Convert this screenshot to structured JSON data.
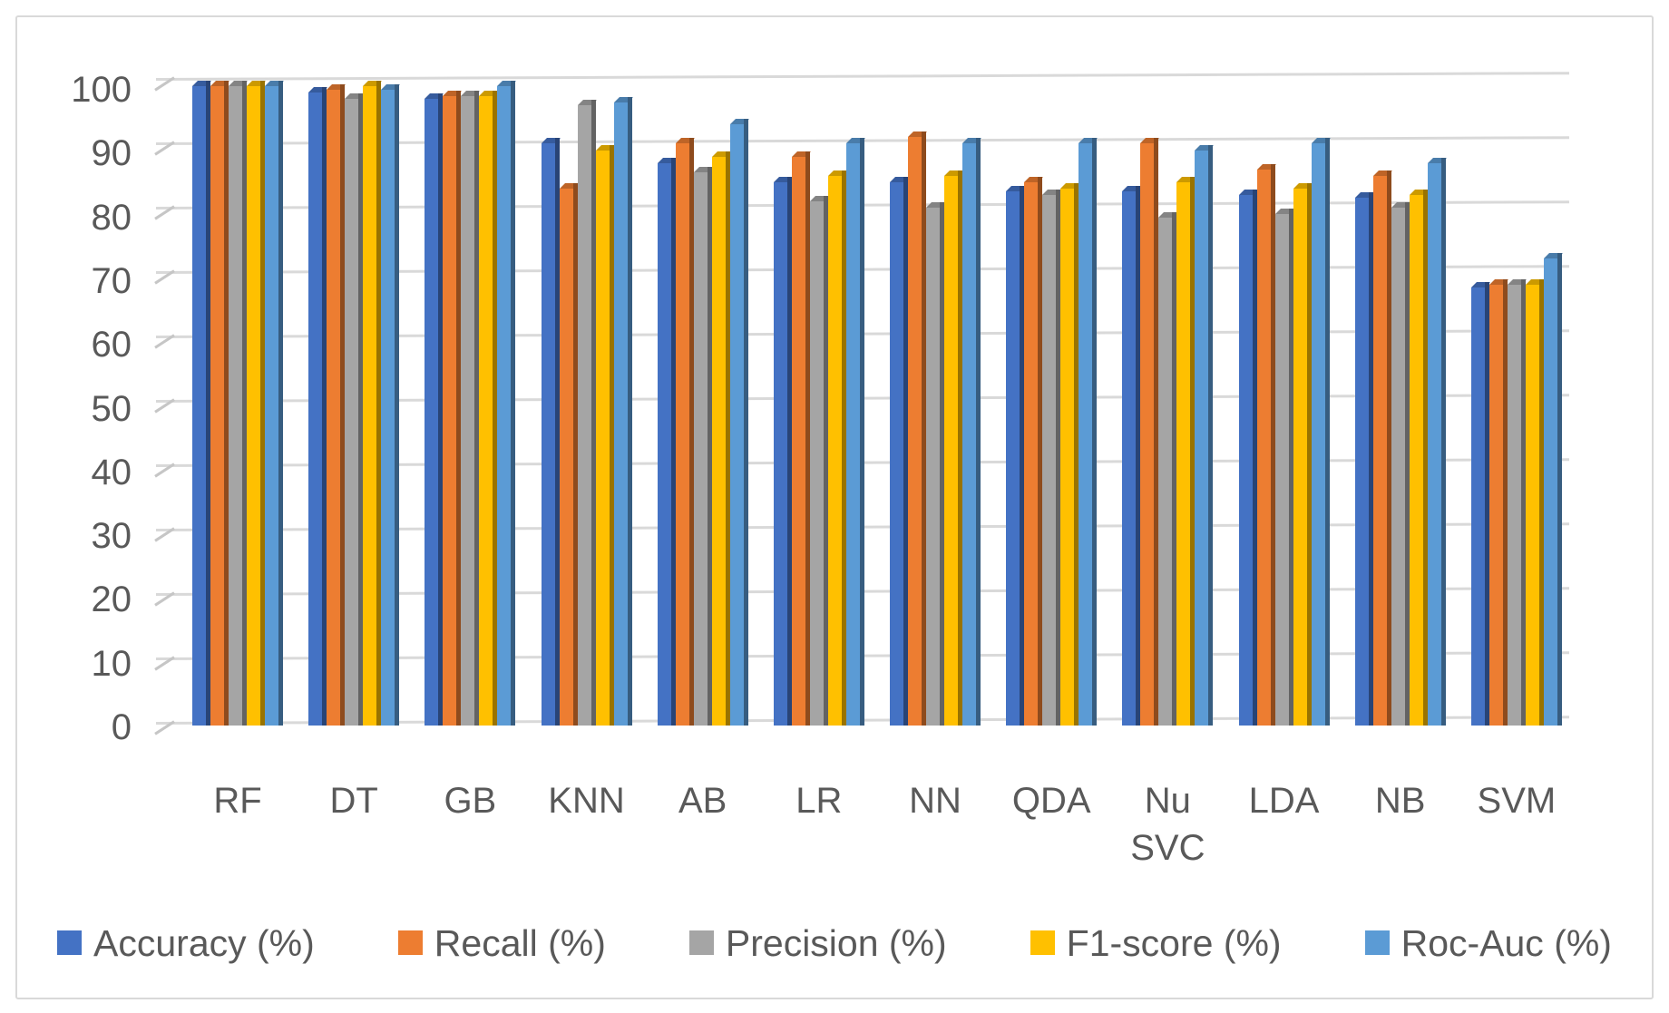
{
  "figure": {
    "background": "#FFFFFF",
    "border_color": "#D9D9D9",
    "text_color": "#595959",
    "gridline_color": "#D9D9D9"
  },
  "chart_data": {
    "type": "bar",
    "style": "3d-clustered-column",
    "title": "",
    "xlabel": "",
    "ylabel": "",
    "categories": [
      "RF",
      "DT",
      "GB",
      "KNN",
      "AB",
      "LR",
      "NN",
      "QDA",
      "Nu SVC",
      "LDA",
      "NB",
      "SVM"
    ],
    "series": [
      {
        "name": "Accuracy (%)",
        "color": "#4472C4",
        "values": [
          100,
          99,
          98,
          91,
          88,
          85,
          85,
          83.5,
          83.5,
          83,
          82.5,
          68.5
        ]
      },
      {
        "name": "Recall (%)",
        "color": "#ED7D31",
        "values": [
          100,
          99.5,
          98.5,
          84,
          91,
          89,
          92,
          85,
          91,
          87,
          86,
          69
        ]
      },
      {
        "name": "Precision (%)",
        "color": "#A5A5A5",
        "values": [
          100,
          98,
          98.5,
          97,
          86.5,
          82,
          81,
          83,
          79.5,
          80,
          81,
          69
        ]
      },
      {
        "name": "F1-score (%)",
        "color": "#FFC000",
        "values": [
          100,
          100,
          98.5,
          90,
          89,
          86,
          86,
          84,
          85,
          84,
          83,
          69
        ]
      },
      {
        "name": "Roc-Auc (%)",
        "color": "#5B9BD5",
        "values": [
          100,
          99.5,
          100,
          97.5,
          94,
          91,
          91,
          91,
          90,
          91,
          88,
          73
        ]
      }
    ],
    "ylim": [
      0,
      100
    ],
    "y_ticks": [
      0,
      10,
      20,
      30,
      40,
      50,
      60,
      70,
      80,
      90,
      100
    ],
    "grid": true,
    "legend_position": "bottom"
  }
}
